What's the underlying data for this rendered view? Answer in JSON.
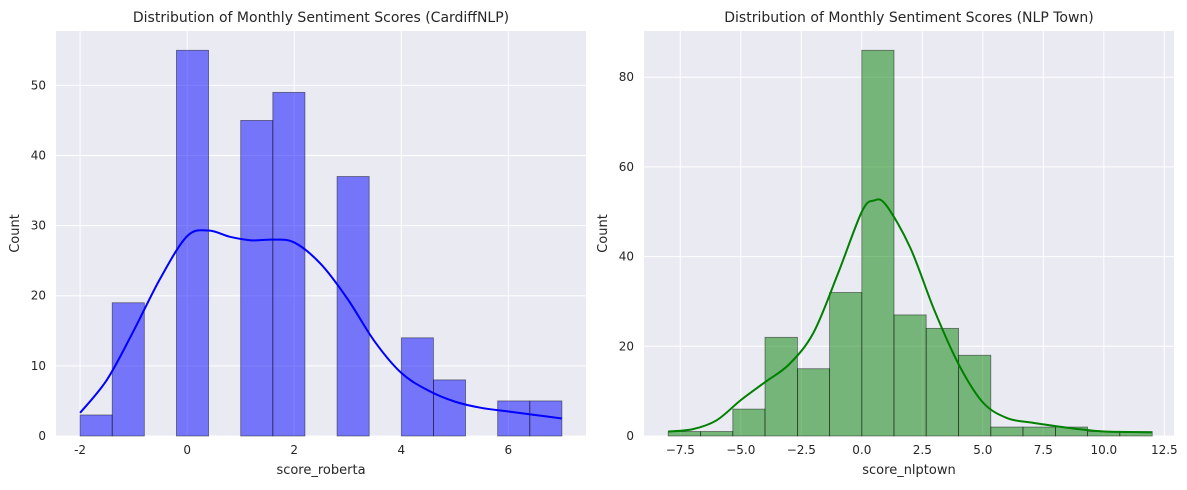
{
  "chart_data": [
    {
      "type": "bar",
      "title": "Distribution of Monthly Sentiment Scores (CardiffNLP)",
      "xlabel": "score_roberta",
      "ylabel": "Count",
      "xlim": [
        -2.45,
        7.45
      ],
      "ylim": [
        0,
        57.75
      ],
      "xticks": [
        -2,
        0,
        2,
        4,
        6
      ],
      "yticks": [
        0,
        10,
        20,
        30,
        40,
        50
      ],
      "grid": true,
      "bar_color": "#0000ff",
      "kde_color": "#0000ff",
      "bins": [
        {
          "x0": -2.0,
          "x1": -1.4,
          "count": 3
        },
        {
          "x0": -1.4,
          "x1": -0.8,
          "count": 19
        },
        {
          "x0": -0.8,
          "x1": -0.2,
          "count": 0
        },
        {
          "x0": -0.2,
          "x1": 0.4,
          "count": 55
        },
        {
          "x0": 0.4,
          "x1": 1.0,
          "count": 0
        },
        {
          "x0": 1.0,
          "x1": 1.6,
          "count": 45
        },
        {
          "x0": 1.6,
          "x1": 2.2,
          "count": 49
        },
        {
          "x0": 2.2,
          "x1": 2.8,
          "count": 0
        },
        {
          "x0": 2.8,
          "x1": 3.4,
          "count": 37
        },
        {
          "x0": 3.4,
          "x1": 4.0,
          "count": 0
        },
        {
          "x0": 4.0,
          "x1": 4.6,
          "count": 14
        },
        {
          "x0": 4.6,
          "x1": 5.2,
          "count": 8
        },
        {
          "x0": 5.2,
          "x1": 5.8,
          "count": 0
        },
        {
          "x0": 5.8,
          "x1": 6.4,
          "count": 5
        },
        {
          "x0": 6.4,
          "x1": 7.0,
          "count": 5
        }
      ],
      "kde": {
        "x": [
          -2.0,
          -1.5,
          -1.0,
          -0.5,
          0.0,
          0.4,
          0.8,
          1.2,
          1.6,
          2.0,
          2.5,
          3.0,
          3.5,
          4.0,
          4.5,
          5.0,
          5.5,
          6.0,
          6.5,
          7.0
        ],
        "y": [
          3.3,
          8.0,
          15.0,
          22.5,
          28.5,
          29.3,
          28.4,
          27.9,
          28.0,
          27.6,
          24.5,
          19.5,
          13.5,
          9.0,
          6.5,
          4.9,
          4.0,
          3.5,
          3.0,
          2.5
        ]
      }
    },
    {
      "type": "bar",
      "title": "Distribution of Monthly Sentiment Scores (NLP Town)",
      "xlabel": "score_nlptown",
      "ylabel": "Count",
      "xlim": [
        -9.0,
        12.9
      ],
      "ylim": [
        0,
        90.3
      ],
      "xticks": [
        -7.5,
        -5.0,
        -2.5,
        0.0,
        2.5,
        5.0,
        7.5,
        10.0,
        12.5
      ],
      "xticklabels": [
        "−7.5",
        "−5.0",
        "−2.5",
        "0.0",
        "2.5",
        "5.0",
        "7.5",
        "10.0",
        "12.5"
      ],
      "yticks": [
        0,
        20,
        40,
        60,
        80
      ],
      "grid": true,
      "bar_color": "#008000",
      "kde_color": "#008000",
      "bins": [
        {
          "x0": -8.0,
          "x1": -6.66,
          "count": 1
        },
        {
          "x0": -6.66,
          "x1": -5.33,
          "count": 1
        },
        {
          "x0": -5.33,
          "x1": -4.0,
          "count": 6
        },
        {
          "x0": -4.0,
          "x1": -2.66,
          "count": 22
        },
        {
          "x0": -2.66,
          "x1": -1.33,
          "count": 15
        },
        {
          "x0": -1.33,
          "x1": 0.0,
          "count": 32
        },
        {
          "x0": 0.0,
          "x1": 1.33,
          "count": 86
        },
        {
          "x0": 1.33,
          "x1": 2.66,
          "count": 27
        },
        {
          "x0": 2.66,
          "x1": 4.0,
          "count": 24
        },
        {
          "x0": 4.0,
          "x1": 5.33,
          "count": 18
        },
        {
          "x0": 5.33,
          "x1": 6.66,
          "count": 2
        },
        {
          "x0": 6.66,
          "x1": 8.0,
          "count": 2
        },
        {
          "x0": 8.0,
          "x1": 9.33,
          "count": 2
        },
        {
          "x0": 9.33,
          "x1": 10.66,
          "count": 1
        },
        {
          "x0": 10.66,
          "x1": 12.0,
          "count": 1
        }
      ],
      "kde": {
        "x": [
          -8.0,
          -7.0,
          -6.0,
          -5.0,
          -4.0,
          -3.0,
          -2.0,
          -1.0,
          0.0,
          0.5,
          1.0,
          2.0,
          3.0,
          4.0,
          5.0,
          6.0,
          7.0,
          8.0,
          9.0,
          10.0,
          11.0,
          12.0
        ],
        "y": [
          1.0,
          1.5,
          3.5,
          8.0,
          12.0,
          16.0,
          23.0,
          36.0,
          50.0,
          52.5,
          51.5,
          42.0,
          28.0,
          16.0,
          7.5,
          4.0,
          3.0,
          2.2,
          1.5,
          1.0,
          0.9,
          0.8
        ]
      }
    }
  ]
}
